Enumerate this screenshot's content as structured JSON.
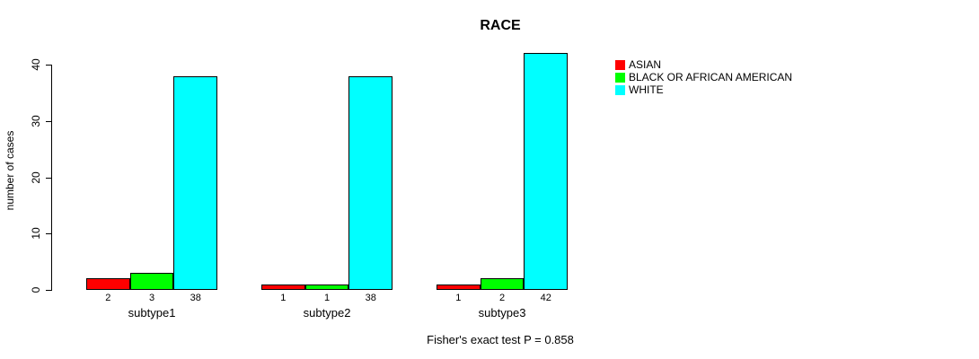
{
  "title": "RACE",
  "footnote": "Fisher's exact test P = 0.858",
  "chart_data": {
    "type": "bar",
    "title": "RACE",
    "xlabel": "",
    "ylabel": "number of cases",
    "categories": [
      "subtype1",
      "subtype2",
      "subtype3"
    ],
    "series": [
      {
        "name": "ASIAN",
        "color": "#ff0000",
        "values": [
          2,
          1,
          1
        ]
      },
      {
        "name": "BLACK OR AFRICAN AMERICAN",
        "color": "#00ff00",
        "values": [
          3,
          1,
          2
        ]
      },
      {
        "name": "WHITE",
        "color": "#00ffff",
        "values": [
          38,
          38,
          42
        ]
      }
    ],
    "bar_value_labels": [
      [
        "2",
        "3",
        "38"
      ],
      [
        "1",
        "1",
        "38"
      ],
      [
        "1",
        "2",
        "42"
      ]
    ],
    "yticks": [
      0,
      10,
      20,
      30,
      40
    ],
    "ylim": [
      0,
      40
    ],
    "grid": false,
    "legend_position": "right",
    "annotation": "Fisher's exact test P = 0.858",
    "bar_border_color": "#000000",
    "background_color": "#ffffff"
  }
}
